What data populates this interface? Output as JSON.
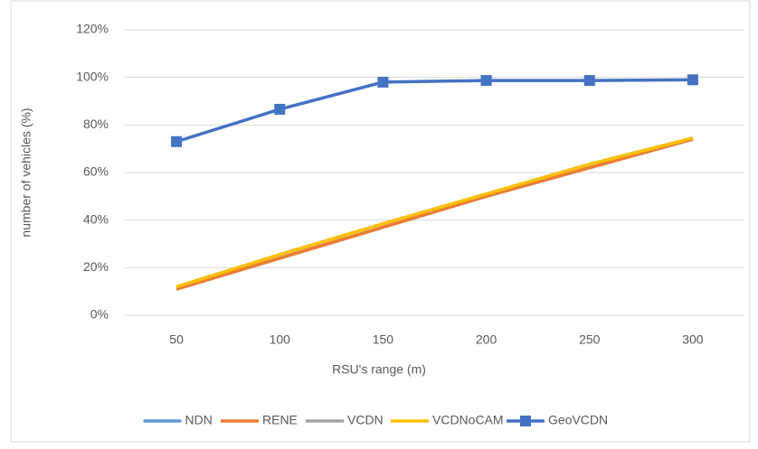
{
  "chart_data": {
    "type": "line",
    "xlabel": "RSU's range (m)",
    "ylabel": "number of vehicles (%)",
    "categories": [
      "50",
      "100",
      "150",
      "200",
      "250",
      "300"
    ],
    "series": [
      {
        "name": "NDN",
        "color": "#5b9bd5",
        "values": [
          11,
          24,
          37,
          50,
          62,
          74
        ]
      },
      {
        "name": "RENE",
        "color": "#ed7d31",
        "values": [
          11,
          24,
          37,
          50,
          62,
          74
        ]
      },
      {
        "name": "VCDN",
        "color": "#a5a5a5",
        "values": [
          12,
          25.5,
          38.5,
          51,
          63.5,
          74.5
        ]
      },
      {
        "name": "VCDNoCAM",
        "color": "#ffc000",
        "values": [
          12,
          25.5,
          38.5,
          51,
          63.5,
          74.5
        ]
      },
      {
        "name": "GeoVCDN",
        "color": "#4472c4",
        "marker": "square",
        "values": [
          73,
          86.6,
          98,
          98.7,
          98.7,
          99
        ]
      }
    ],
    "ylim": [
      0,
      120
    ],
    "yticks": [
      {
        "value": 0,
        "label": "0%"
      },
      {
        "value": 20,
        "label": "20%"
      },
      {
        "value": 40,
        "label": "40%"
      },
      {
        "value": 60,
        "label": "60%"
      },
      {
        "value": 80,
        "label": "80%"
      },
      {
        "value": 100,
        "label": "100%"
      },
      {
        "value": 120,
        "label": "120%"
      }
    ],
    "grid": true,
    "legend": "bottom"
  }
}
